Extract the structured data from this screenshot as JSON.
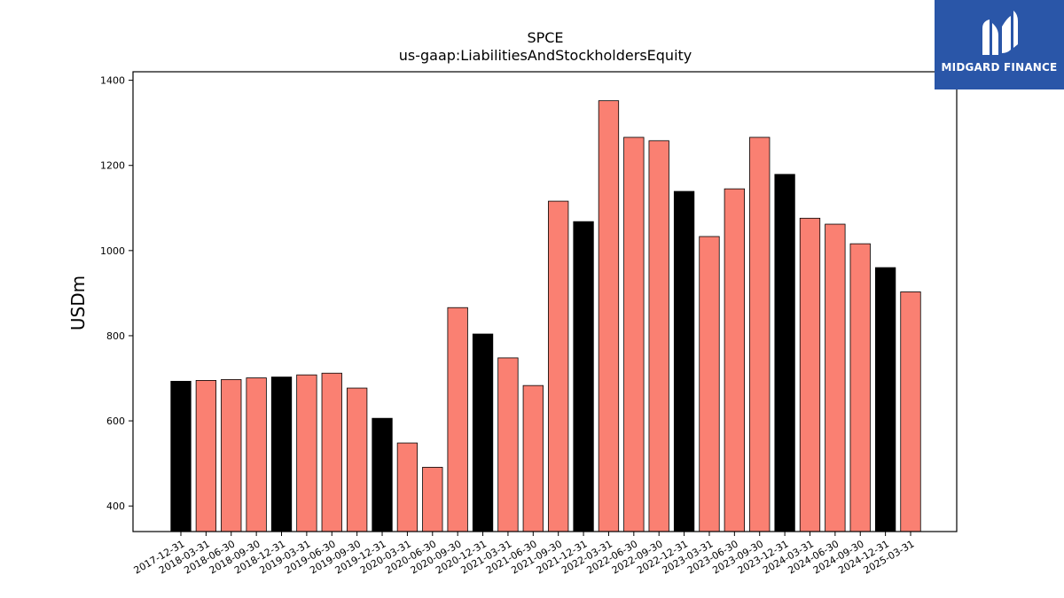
{
  "chart_data": {
    "type": "bar",
    "title": "SPCE",
    "subtitle": "us-gaap:LiabilitiesAndStockholdersEquity",
    "xlabel": "",
    "ylabel": "USDm",
    "ylim": [
      340,
      1420
    ],
    "yticks": [
      400,
      600,
      800,
      1000,
      1200,
      1400
    ],
    "grid": false,
    "categories": [
      "2017-12-31",
      "2018-03-31",
      "2018-06-30",
      "2018-09-30",
      "2018-12-31",
      "2019-03-31",
      "2019-06-30",
      "2019-09-30",
      "2019-12-31",
      "2020-03-31",
      "2020-06-30",
      "2020-09-30",
      "2020-12-31",
      "2021-03-31",
      "2021-06-30",
      "2021-09-30",
      "2021-12-31",
      "2022-03-31",
      "2022-06-30",
      "2022-09-30",
      "2022-12-31",
      "2023-03-31",
      "2023-06-30",
      "2023-09-30",
      "2023-12-31",
      "2024-03-31",
      "2024-06-30",
      "2024-09-30",
      "2024-12-31",
      "2025-03-31"
    ],
    "values": [
      693,
      695,
      697,
      701,
      703,
      708,
      712,
      677,
      606,
      548,
      491,
      866,
      804,
      748,
      683,
      1116,
      1068,
      1352,
      1266,
      1258,
      1139,
      1033,
      1145,
      1266,
      1179,
      1076,
      1062,
      1016,
      960,
      903
    ],
    "colors": {
      "year_end": "#000000",
      "quarter": "#fa8072",
      "edge": "#000000"
    }
  },
  "logo": {
    "text": "MIDGARD FINANCE"
  }
}
